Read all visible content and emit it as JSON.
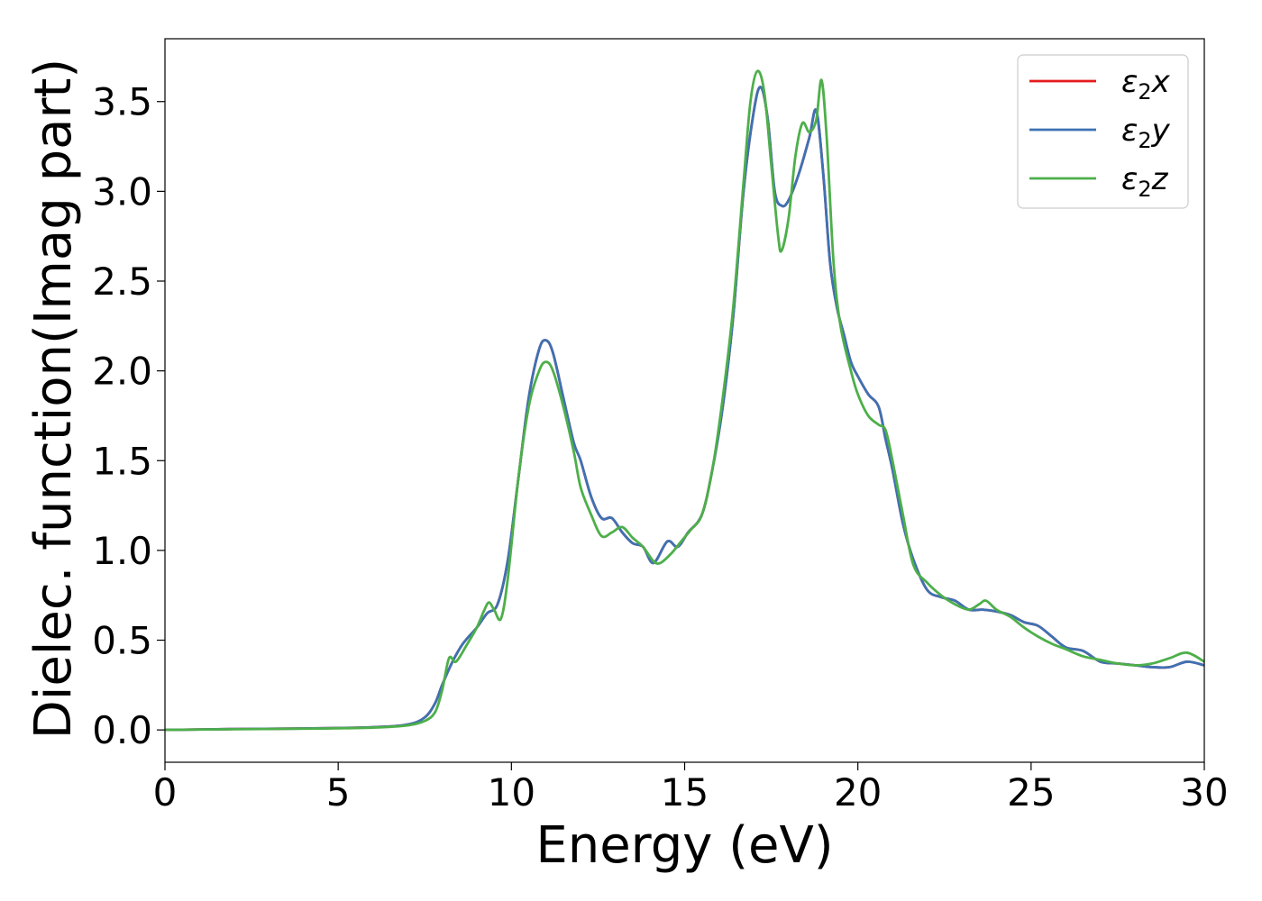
{
  "chart_data": {
    "type": "line",
    "title": "",
    "xlabel": "Energy (eV)",
    "ylabel": "Dielec. function(Imag part)",
    "xlim": [
      0,
      30
    ],
    "ylim": [
      -0.18,
      3.85
    ],
    "xticks": [
      0,
      5,
      10,
      15,
      20,
      25,
      30
    ],
    "yticks": [
      0.0,
      0.5,
      1.0,
      1.5,
      2.0,
      2.5,
      3.0,
      3.5
    ],
    "xtick_labels": [
      "0",
      "5",
      "10",
      "15",
      "20",
      "25",
      "30"
    ],
    "ytick_labels": [
      "0.0",
      "0.5",
      "1.0",
      "1.5",
      "2.0",
      "2.5",
      "3.0",
      "3.5"
    ],
    "grid": false,
    "legend_position": "top-right",
    "series": [
      {
        "name": "ε₂x",
        "legend": {
          "base": "ε",
          "sub": "2",
          "suffix": "x"
        },
        "color": "#e41a1c",
        "x": [
          0,
          2,
          4,
          6,
          7,
          7.5,
          7.8,
          8.0,
          8.3,
          8.6,
          9.0,
          9.3,
          9.6,
          9.9,
          10.2,
          10.5,
          10.8,
          11.0,
          11.2,
          11.5,
          11.8,
          12.0,
          12.3,
          12.6,
          12.9,
          13.2,
          13.5,
          13.8,
          14.1,
          14.5,
          14.8,
          15.1,
          15.5,
          15.8,
          16.1,
          16.4,
          16.7,
          17.0,
          17.2,
          17.4,
          17.6,
          17.8,
          18.0,
          18.3,
          18.6,
          18.8,
          19.0,
          19.2,
          19.4,
          19.6,
          19.8,
          20.0,
          20.3,
          20.6,
          20.8,
          21.0,
          21.3,
          21.6,
          22.0,
          22.4,
          22.8,
          23.2,
          23.6,
          24.0,
          24.4,
          24.8,
          25.2,
          25.6,
          26.0,
          26.5,
          27.0,
          27.5,
          28.0,
          28.5,
          29.0,
          29.5,
          30.0
        ],
        "y": [
          0.0,
          0.005,
          0.008,
          0.015,
          0.03,
          0.07,
          0.15,
          0.25,
          0.38,
          0.48,
          0.57,
          0.65,
          0.7,
          0.95,
          1.4,
          1.85,
          2.12,
          2.17,
          2.1,
          1.85,
          1.6,
          1.5,
          1.3,
          1.18,
          1.18,
          1.1,
          1.04,
          1.02,
          0.93,
          1.05,
          1.02,
          1.1,
          1.2,
          1.45,
          1.8,
          2.3,
          3.0,
          3.45,
          3.58,
          3.4,
          3.0,
          2.92,
          2.95,
          3.1,
          3.3,
          3.45,
          3.1,
          2.6,
          2.35,
          2.2,
          2.05,
          1.97,
          1.87,
          1.8,
          1.62,
          1.45,
          1.15,
          0.95,
          0.78,
          0.74,
          0.72,
          0.67,
          0.67,
          0.66,
          0.64,
          0.6,
          0.58,
          0.52,
          0.46,
          0.44,
          0.38,
          0.37,
          0.36,
          0.35,
          0.35,
          0.38,
          0.36
        ]
      },
      {
        "name": "ε₂y",
        "legend": {
          "base": "ε",
          "sub": "2",
          "suffix": "y"
        },
        "color": "#3d72b4",
        "x": [
          0,
          2,
          4,
          6,
          7,
          7.5,
          7.8,
          8.0,
          8.3,
          8.6,
          9.0,
          9.3,
          9.6,
          9.9,
          10.2,
          10.5,
          10.8,
          11.0,
          11.2,
          11.5,
          11.8,
          12.0,
          12.3,
          12.6,
          12.9,
          13.2,
          13.5,
          13.8,
          14.1,
          14.5,
          14.8,
          15.1,
          15.5,
          15.8,
          16.1,
          16.4,
          16.7,
          17.0,
          17.2,
          17.4,
          17.6,
          17.8,
          18.0,
          18.3,
          18.6,
          18.8,
          19.0,
          19.2,
          19.4,
          19.6,
          19.8,
          20.0,
          20.3,
          20.6,
          20.8,
          21.0,
          21.3,
          21.6,
          22.0,
          22.4,
          22.8,
          23.2,
          23.6,
          24.0,
          24.4,
          24.8,
          25.2,
          25.6,
          26.0,
          26.5,
          27.0,
          27.5,
          28.0,
          28.5,
          29.0,
          29.5,
          30.0
        ],
        "y": [
          0.0,
          0.005,
          0.008,
          0.015,
          0.03,
          0.07,
          0.15,
          0.25,
          0.38,
          0.48,
          0.57,
          0.65,
          0.7,
          0.95,
          1.4,
          1.85,
          2.12,
          2.17,
          2.1,
          1.85,
          1.6,
          1.5,
          1.3,
          1.18,
          1.18,
          1.1,
          1.04,
          1.02,
          0.93,
          1.05,
          1.02,
          1.1,
          1.2,
          1.45,
          1.8,
          2.3,
          3.0,
          3.45,
          3.58,
          3.4,
          3.0,
          2.92,
          2.95,
          3.1,
          3.3,
          3.45,
          3.1,
          2.6,
          2.35,
          2.2,
          2.05,
          1.97,
          1.87,
          1.8,
          1.62,
          1.45,
          1.15,
          0.95,
          0.78,
          0.74,
          0.72,
          0.67,
          0.67,
          0.66,
          0.64,
          0.6,
          0.58,
          0.52,
          0.46,
          0.44,
          0.38,
          0.37,
          0.36,
          0.35,
          0.35,
          0.38,
          0.36
        ]
      },
      {
        "name": "ε₂z",
        "legend": {
          "base": "ε",
          "sub": "2",
          "suffix": "z"
        },
        "color": "#4daf4a",
        "x": [
          0,
          2,
          4,
          6,
          7,
          7.5,
          7.8,
          8.0,
          8.2,
          8.4,
          8.7,
          9.0,
          9.2,
          9.35,
          9.5,
          9.7,
          9.9,
          10.2,
          10.5,
          10.8,
          11.0,
          11.2,
          11.5,
          11.8,
          12.0,
          12.3,
          12.6,
          12.9,
          13.2,
          13.5,
          13.8,
          14.1,
          14.3,
          14.6,
          14.9,
          15.2,
          15.5,
          15.8,
          16.1,
          16.4,
          16.7,
          16.9,
          17.1,
          17.3,
          17.5,
          17.7,
          17.8,
          18.0,
          18.2,
          18.4,
          18.6,
          18.8,
          18.95,
          19.1,
          19.3,
          19.5,
          19.8,
          20.0,
          20.3,
          20.6,
          20.8,
          21.0,
          21.3,
          21.6,
          22.0,
          22.4,
          22.8,
          23.2,
          23.5,
          23.7,
          24.0,
          24.4,
          24.8,
          25.2,
          25.6,
          26.0,
          26.5,
          27.0,
          27.5,
          28.0,
          28.5,
          29.0,
          29.5,
          30.0
        ],
        "y": [
          0.0,
          0.004,
          0.007,
          0.013,
          0.025,
          0.05,
          0.1,
          0.22,
          0.4,
          0.38,
          0.47,
          0.57,
          0.66,
          0.71,
          0.67,
          0.62,
          0.85,
          1.4,
          1.8,
          2.0,
          2.05,
          2.0,
          1.8,
          1.55,
          1.35,
          1.2,
          1.08,
          1.1,
          1.13,
          1.07,
          1.02,
          0.94,
          0.93,
          0.98,
          1.05,
          1.12,
          1.2,
          1.45,
          1.85,
          2.35,
          3.05,
          3.5,
          3.67,
          3.55,
          3.15,
          2.75,
          2.67,
          2.85,
          3.2,
          3.38,
          3.33,
          3.4,
          3.62,
          3.3,
          2.6,
          2.25,
          2.0,
          1.87,
          1.75,
          1.7,
          1.67,
          1.5,
          1.2,
          0.92,
          0.82,
          0.75,
          0.7,
          0.67,
          0.7,
          0.72,
          0.67,
          0.63,
          0.57,
          0.52,
          0.48,
          0.45,
          0.41,
          0.39,
          0.37,
          0.36,
          0.37,
          0.4,
          0.43,
          0.38
        ]
      }
    ]
  }
}
